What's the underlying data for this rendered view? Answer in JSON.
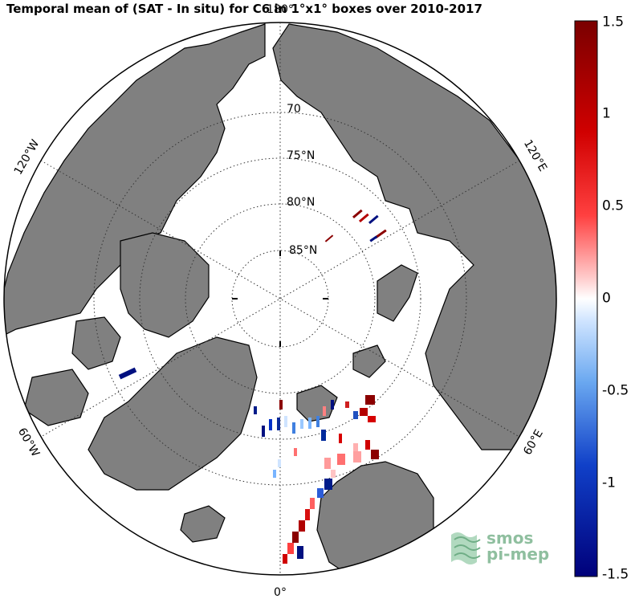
{
  "title": "Temporal mean of (SAT - In situ) for C6 in 1°x1° boxes over 2010-2017",
  "map": {
    "projection": "north polar stereographic",
    "lon_labels": [
      {
        "text": "180°",
        "name": "lon-label-180"
      },
      {
        "text": "120°W",
        "name": "lon-label-120w"
      },
      {
        "text": "120°E",
        "name": "lon-label-120e"
      },
      {
        "text": "60°W",
        "name": "lon-label-60w"
      },
      {
        "text": "60°E",
        "name": "lon-label-60e"
      },
      {
        "text": "0°",
        "name": "lon-label-0"
      }
    ],
    "lat_labels": [
      {
        "text": "70",
        "name": "lat-label-70"
      },
      {
        "text": "75°N",
        "name": "lat-label-75"
      },
      {
        "text": "80°N",
        "name": "lat-label-80"
      },
      {
        "text": "85°N",
        "name": "lat-label-85"
      }
    ],
    "colors": {
      "land": "#808080",
      "coast": "#000000",
      "ocean": "#ffffff",
      "grid": "#333333"
    }
  },
  "colorbar": {
    "min": -1.5,
    "max": 1.5,
    "ticks": [
      "1.5",
      "1",
      "0.5",
      "0",
      "-0.5",
      "-1",
      "-1.5"
    ],
    "colors": {
      "high": "#7a0000",
      "mid": "#ffffff",
      "low": "#00007a"
    }
  },
  "logo": {
    "line1": "smos",
    "line2": "pi-mep"
  }
}
